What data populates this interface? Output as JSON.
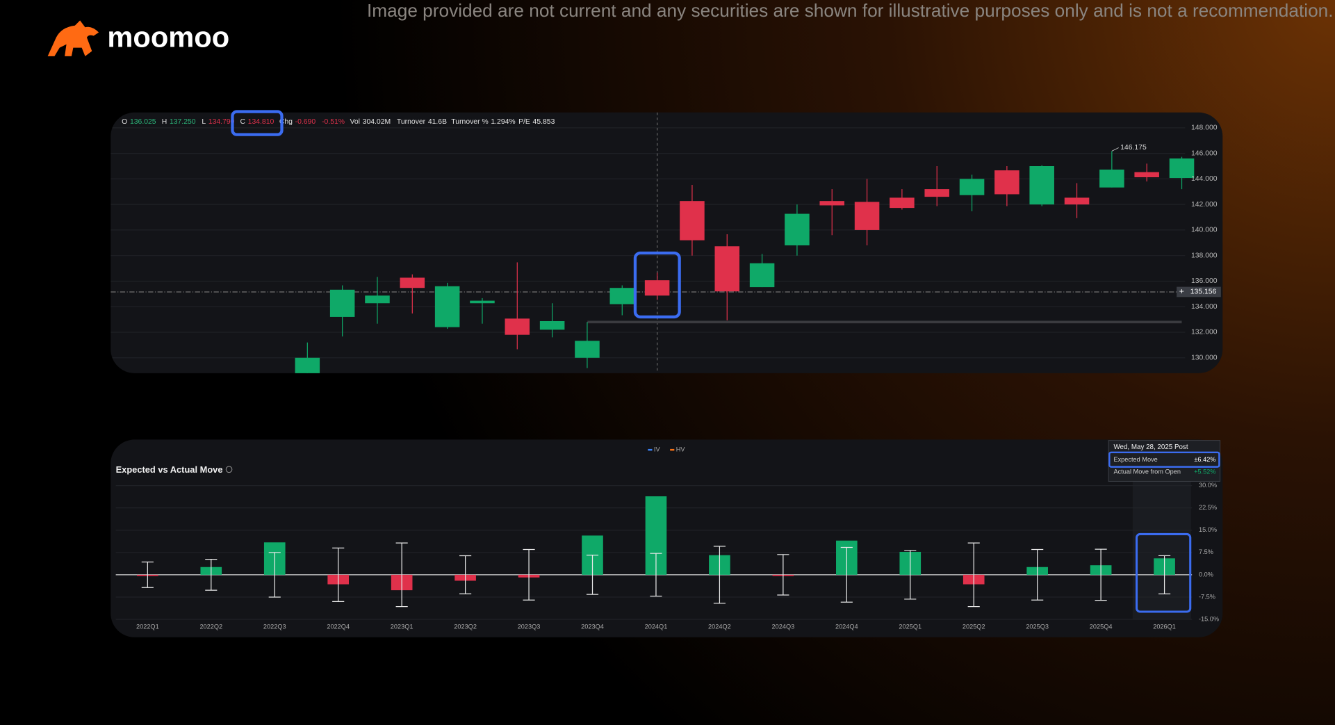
{
  "disclaimer": "Image provided are not current and any securities are shown for illustrative purposes only and is not a recommendation.",
  "brand": "moomoo",
  "chart_data": [
    {
      "type": "candlestick",
      "header": [
        {
          "label": "O",
          "value": "136.025",
          "value_color": "#2cb57a"
        },
        {
          "label": "H",
          "value": "137.250",
          "value_color": "#2cb57a"
        },
        {
          "label": "L",
          "value": "134.790",
          "value_color": "#e0314b"
        },
        {
          "label": "C",
          "value": "134.810",
          "value_color": "#e0314b"
        },
        {
          "label": "Chg",
          "value": "-0.690",
          "value_color": "#e0314b"
        },
        {
          "label": "",
          "value": "-0.51%",
          "value_color": "#e0314b"
        },
        {
          "label": "Vol",
          "value": "304.02M",
          "value_color": "#e8e8e8"
        },
        {
          "label": "Turnover",
          "value": "41.6B",
          "value_color": "#e8e8e8"
        },
        {
          "label": "Turnover %",
          "value": "1.294%",
          "value_color": "#e8e8e8"
        },
        {
          "label": "P/E",
          "value": "45.853",
          "value_color": "#e8e8e8"
        }
      ],
      "categories": [
        null,
        null,
        null,
        null,
        null,
        null,
        null,
        null,
        null,
        null,
        null,
        null,
        null,
        null,
        null,
        null,
        null,
        null,
        null,
        null,
        null,
        null,
        null,
        null,
        null,
        null
      ],
      "open": [
        128.7,
        133.2,
        134.27,
        136.27,
        132.4,
        134.27,
        133.07,
        132.2,
        130.0,
        134.2,
        136.07,
        142.27,
        138.73,
        135.53,
        138.8,
        142.27,
        142.2,
        142.53,
        143.2,
        142.73,
        144.67,
        142.0,
        142.53,
        143.33,
        144.53,
        144.07
      ],
      "high": [
        131.2,
        135.67,
        136.33,
        136.53,
        135.87,
        134.67,
        137.47,
        134.27,
        132.8,
        135.67,
        136.67,
        143.53,
        139.67,
        138.13,
        142.0,
        143.2,
        144.0,
        143.2,
        145.0,
        144.33,
        145.0,
        145.07,
        143.67,
        146.175,
        145.2,
        145.73
      ],
      "low": [
        128.6,
        131.67,
        132.67,
        133.47,
        132.27,
        132.67,
        130.67,
        131.6,
        129.2,
        133.33,
        134.53,
        138.0,
        132.93,
        135.53,
        138.0,
        139.6,
        138.8,
        141.6,
        141.87,
        141.47,
        141.87,
        141.87,
        140.93,
        143.33,
        143.8,
        143.2
      ],
      "close": [
        130.0,
        135.33,
        134.87,
        135.47,
        135.6,
        134.47,
        131.8,
        132.87,
        131.33,
        135.47,
        134.87,
        139.2,
        135.2,
        137.4,
        141.27,
        141.93,
        140.0,
        141.73,
        142.6,
        144.0,
        142.8,
        145.0,
        142.0,
        144.73,
        144.13,
        145.6
      ],
      "up_color": "#0fa968",
      "down_color": "#e0314b",
      "ylim": [
        128.8,
        149.2
      ],
      "yticks": [
        {
          "value": 130,
          "label": "130.000"
        },
        {
          "value": 132,
          "label": "132.000"
        },
        {
          "value": 134,
          "label": "134.000"
        },
        {
          "value": 136,
          "label": "136.000"
        },
        {
          "value": 138,
          "label": "138.000"
        },
        {
          "value": 140,
          "label": "140.000"
        },
        {
          "value": 142,
          "label": "142.000"
        },
        {
          "value": 144,
          "label": "144.000"
        },
        {
          "value": 146,
          "label": "146.000"
        },
        {
          "value": 148,
          "label": "148.000"
        }
      ],
      "grid": true,
      "crosshair": 135.156
    },
    {
      "type": "bar",
      "title": "Expected vs Actual Move",
      "legend": [
        {
          "name": "IV",
          "color": "#3b82f6"
        },
        {
          "name": "HV",
          "color": "#f97316"
        }
      ],
      "categories": [
        "2022Q1",
        "2022Q2",
        "2022Q3",
        "2022Q4",
        "2023Q1",
        "2023Q2",
        "2023Q3",
        "2023Q4",
        "2024Q1",
        "2024Q2",
        "2024Q3",
        "2024Q4",
        "2025Q1",
        "2025Q2",
        "2025Q3",
        "2025Q4",
        "2026Q1"
      ],
      "values": [
        -0.3,
        2.6,
        10.9,
        -3.2,
        -5.2,
        -2.0,
        -0.9,
        13.2,
        26.4,
        6.6,
        -0.3,
        11.5,
        7.7,
        -3.2,
        2.6,
        3.2,
        5.52
      ],
      "errors": [
        4.3,
        5.2,
        7.5,
        9.0,
        10.7,
        6.4,
        8.5,
        6.6,
        7.2,
        9.6,
        6.8,
        9.2,
        8.2,
        10.7,
        8.5,
        8.6,
        6.42
      ],
      "up_color": "#0fa968",
      "down_color": "#e0314b",
      "ylim": [
        -15,
        30
      ],
      "yticks": [
        {
          "value": 30,
          "label": "30.0%"
        },
        {
          "value": 22.5,
          "label": "22.5%"
        },
        {
          "value": 15,
          "label": "15.0%"
        },
        {
          "value": 7.5,
          "label": "7.5%"
        },
        {
          "value": 0,
          "label": "0.0%"
        },
        {
          "value": -7.5,
          "label": "-7.5%"
        },
        {
          "value": -15,
          "label": "-15.0%"
        }
      ],
      "grid": true,
      "tooltip": {
        "date": "Wed, May 28, 2025 Post",
        "rows": [
          {
            "label": "Expected Move",
            "value": "±6.42%",
            "value_color": "#ffffff"
          },
          {
            "label": "Actual Move from Open",
            "value": "+5.52%",
            "value_color": "#0fa968"
          }
        ]
      }
    }
  ]
}
